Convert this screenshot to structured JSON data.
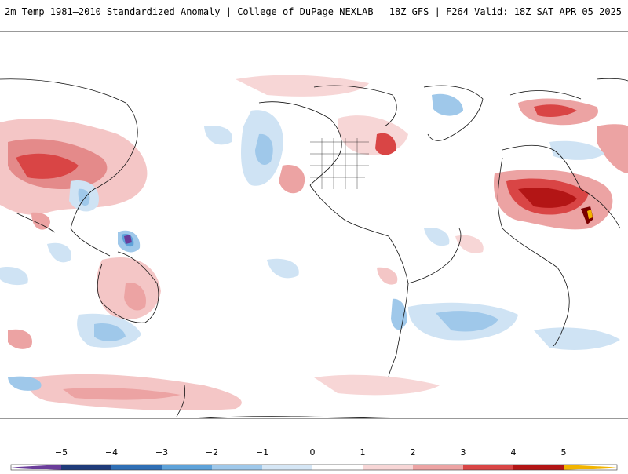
{
  "header": {
    "title_left": "2m Temp 1981–2010 Standardized Anomaly | College of DuPage NEXLAB",
    "title_right": "18Z GFS | F264 Valid: 18Z SAT APR 05 2025"
  },
  "map": {
    "projection": "global cylindrical, Pacific-centered",
    "field": "2m temperature standardized anomaly"
  },
  "legend": {
    "ticks": [
      "−5",
      "−4",
      "−3",
      "−2",
      "−1",
      "0",
      "1",
      "2",
      "3",
      "4",
      "5"
    ],
    "colors": [
      "#6a3d9a",
      "#1f3b7a",
      "#2f6fb5",
      "#5ea2d9",
      "#9fc8ea",
      "#d5e6f5",
      "#ffffff",
      "#f7d6d6",
      "#eca3a3",
      "#d94545",
      "#b31515",
      "#7a0000",
      "#f2b400"
    ]
  }
}
